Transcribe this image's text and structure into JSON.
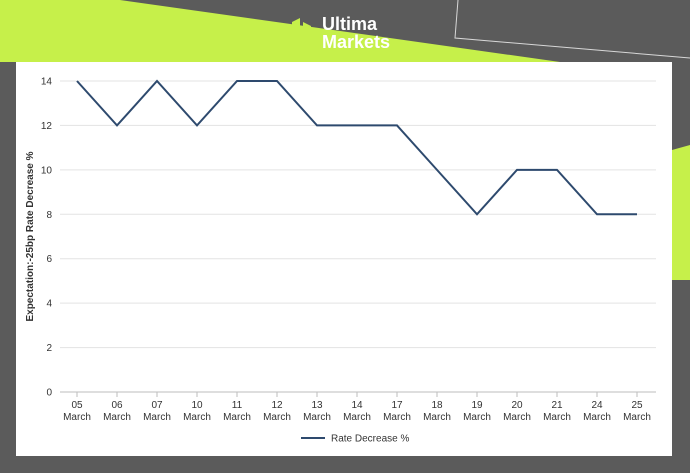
{
  "brand": {
    "line1": "Ultima",
    "line2": "Markets",
    "accent_color": "#c6f04a",
    "background_color": "#5b5b5b"
  },
  "chart_data": {
    "type": "line",
    "categories": [
      "05 March",
      "06 March",
      "07 March",
      "10 March",
      "11 March",
      "12 March",
      "13 March",
      "14 March",
      "17 March",
      "18 March",
      "19 March",
      "20 March",
      "21 March",
      "24 March",
      "25 March"
    ],
    "category_lines": [
      [
        "05",
        "March"
      ],
      [
        "06",
        "March"
      ],
      [
        "07",
        "March"
      ],
      [
        "10",
        "March"
      ],
      [
        "11",
        "March"
      ],
      [
        "12",
        "March"
      ],
      [
        "13",
        "March"
      ],
      [
        "14",
        "March"
      ],
      [
        "17",
        "March"
      ],
      [
        "18",
        "March"
      ],
      [
        "19",
        "March"
      ],
      [
        "20",
        "March"
      ],
      [
        "21",
        "March"
      ],
      [
        "24",
        "March"
      ],
      [
        "25",
        "March"
      ]
    ],
    "series": [
      {
        "name": "Rate Decrease %",
        "values": [
          14,
          12,
          14,
          12,
          14,
          14,
          12,
          12,
          12,
          10,
          8,
          10,
          10,
          8,
          8
        ],
        "color": "#2e4a6e"
      }
    ],
    "ylabel": "Expectation:-25bp Rate Decrease %",
    "xlabel": "",
    "ylim": [
      0,
      14
    ],
    "yticks": [
      0,
      2,
      4,
      6,
      8,
      10,
      12,
      14
    ],
    "grid": true,
    "legend_position": "bottom-center"
  }
}
